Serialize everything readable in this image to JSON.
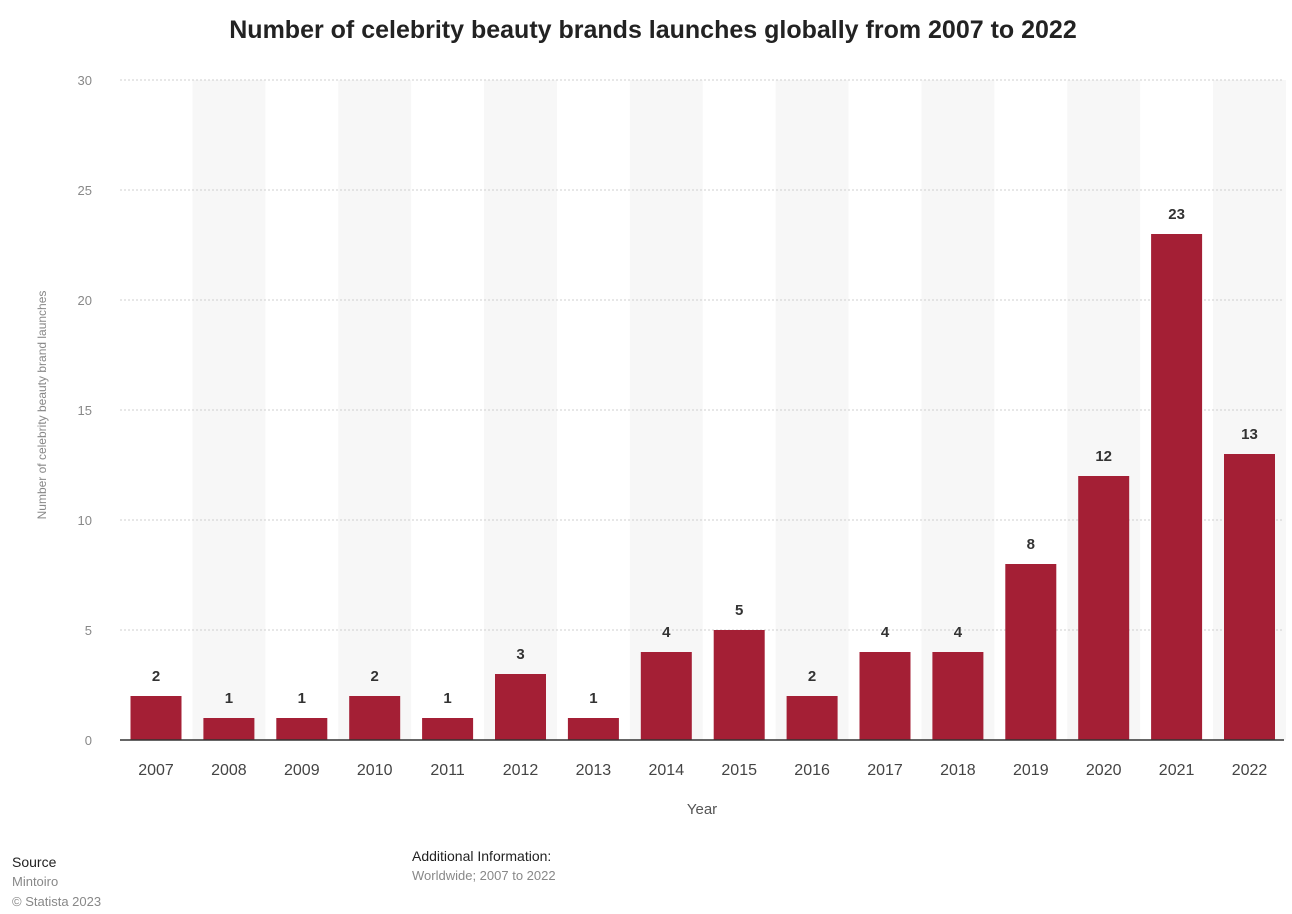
{
  "chart_data": {
    "type": "bar",
    "title": "Number of celebrity beauty brands launches globally from 2007 to 2022",
    "xlabel": "Year",
    "ylabel": "Number of celebrity beauty brand launches",
    "categories": [
      "2007",
      "2008",
      "2009",
      "2010",
      "2011",
      "2012",
      "2013",
      "2014",
      "2015",
      "2016",
      "2017",
      "2018",
      "2019",
      "2020",
      "2021",
      "2022"
    ],
    "values": [
      2,
      1,
      1,
      2,
      1,
      3,
      1,
      4,
      5,
      2,
      4,
      4,
      8,
      12,
      23,
      13
    ],
    "ylim": [
      0,
      30
    ],
    "yticks": [
      0,
      5,
      10,
      15,
      20,
      25,
      30
    ],
    "grid": true,
    "bar_color": "#a41f35"
  },
  "footer": {
    "source_label": "Source",
    "source_value": "Mintoiro",
    "copyright": "© Statista 2023",
    "additional_label": "Additional Information:",
    "additional_value": "Worldwide; 2007 to 2022"
  }
}
